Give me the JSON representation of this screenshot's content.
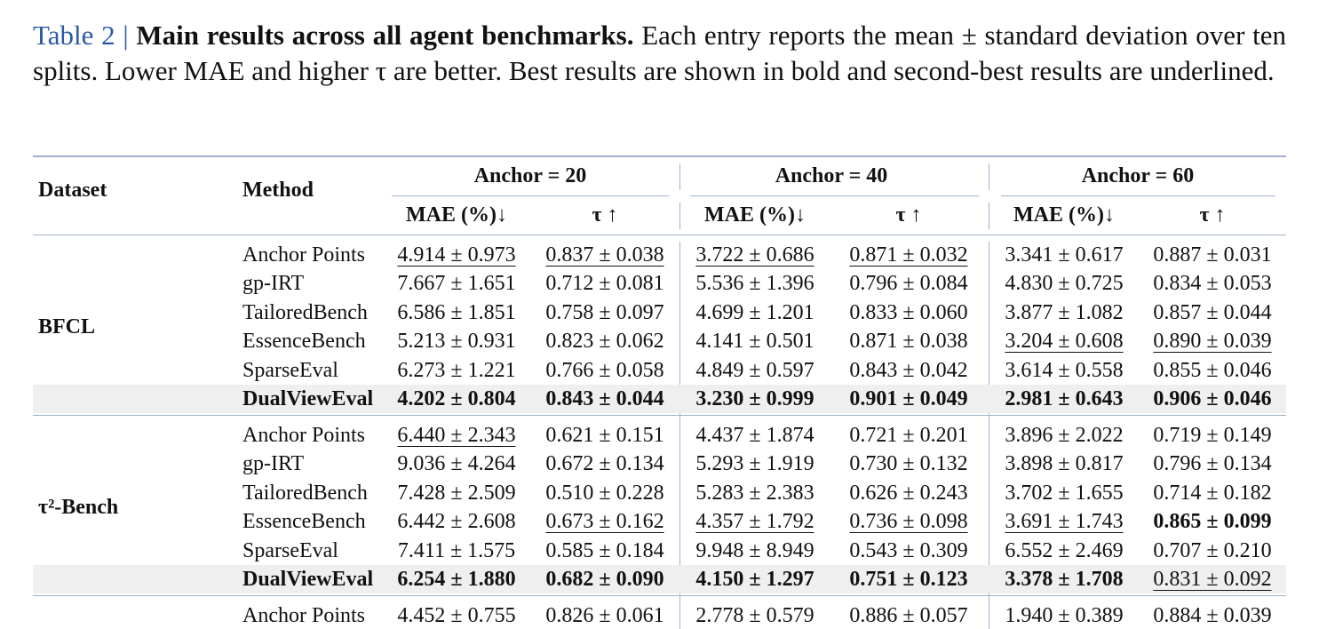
{
  "caption": {
    "label": "Table 2",
    "separator": "|",
    "title": "Main results across all agent benchmarks.",
    "text": "Each entry reports the mean ± standard deviation over ten splits. Lower MAE and higher τ are better. Best results are shown in bold and second-best results are underlined."
  },
  "table": {
    "header": {
      "dataset": "Dataset",
      "method": "Method",
      "groups": [
        "Anchor = 20",
        "Anchor = 40",
        "Anchor = 60"
      ],
      "metrics": [
        "MAE (%)↓",
        "τ ↑"
      ]
    },
    "groups": [
      {
        "dataset": "BFCL",
        "rows": [
          {
            "method": "Anchor Points",
            "values": [
              {
                "text": "4.914 ± 0.973",
                "style": "underline"
              },
              {
                "text": "0.837 ± 0.038",
                "style": "underline"
              },
              {
                "text": "3.722 ± 0.686",
                "style": "underline"
              },
              {
                "text": "0.871 ± 0.032",
                "style": "underline"
              },
              "3.341 ± 0.617",
              "0.887 ± 0.031"
            ]
          },
          {
            "method": "gp-IRT",
            "values": [
              "7.667 ± 1.651",
              "0.712 ± 0.081",
              "5.536 ± 1.396",
              "0.796 ± 0.084",
              "4.830 ± 0.725",
              "0.834 ± 0.053"
            ]
          },
          {
            "method": "TailoredBench",
            "values": [
              "6.586 ± 1.851",
              "0.758 ± 0.097",
              "4.699 ± 1.201",
              "0.833 ± 0.060",
              "3.877 ± 1.082",
              "0.857 ± 0.044"
            ]
          },
          {
            "method": "EssenceBench",
            "values": [
              "5.213 ± 0.931",
              "0.823 ± 0.062",
              "4.141 ± 0.501",
              "0.871 ± 0.038",
              {
                "text": "3.204 ± 0.608",
                "style": "underline"
              },
              {
                "text": "0.890 ± 0.039",
                "style": "underline"
              }
            ]
          },
          {
            "method": "SparseEval",
            "values": [
              "6.273 ± 1.221",
              "0.766 ± 0.058",
              "4.849 ± 0.597",
              "0.843 ± 0.042",
              "3.614 ± 0.558",
              "0.855 ± 0.046"
            ]
          },
          {
            "method": "DualViewEval",
            "highlight": true,
            "values": [
              {
                "text": "4.202 ± 0.804",
                "style": "bold"
              },
              {
                "text": "0.843 ± 0.044",
                "style": "bold"
              },
              {
                "text": "3.230 ± 0.999",
                "style": "bold"
              },
              {
                "text": "0.901 ± 0.049",
                "style": "bold"
              },
              {
                "text": "2.981 ± 0.643",
                "style": "bold"
              },
              {
                "text": "0.906 ± 0.046",
                "style": "bold"
              }
            ]
          }
        ]
      },
      {
        "dataset": "τ²-Bench",
        "rows": [
          {
            "method": "Anchor Points",
            "values": [
              {
                "text": "6.440 ± 2.343",
                "style": "underline"
              },
              "0.621 ± 0.151",
              "4.437 ± 1.874",
              "0.721 ± 0.201",
              "3.896 ± 2.022",
              "0.719 ± 0.149"
            ]
          },
          {
            "method": "gp-IRT",
            "values": [
              "9.036 ± 4.264",
              "0.672 ± 0.134",
              "5.293 ± 1.919",
              "0.730 ± 0.132",
              "3.898 ± 0.817",
              "0.796 ± 0.134"
            ]
          },
          {
            "method": "TailoredBench",
            "values": [
              "7.428 ± 2.509",
              "0.510 ± 0.228",
              "5.283 ± 2.383",
              "0.626 ± 0.243",
              "3.702 ± 1.655",
              "0.714 ± 0.182"
            ]
          },
          {
            "method": "EssenceBench",
            "values": [
              "6.442 ± 2.608",
              {
                "text": "0.673 ± 0.162",
                "style": "underline"
              },
              {
                "text": "4.357 ± 1.792",
                "style": "underline"
              },
              {
                "text": "0.736 ± 0.098",
                "style": "underline"
              },
              {
                "text": "3.691 ± 1.743",
                "style": "underline"
              },
              {
                "text": "0.865 ± 0.099",
                "style": "bold"
              }
            ]
          },
          {
            "method": "SparseEval",
            "values": [
              "7.411 ± 1.575",
              "0.585 ± 0.184",
              "9.948 ± 8.949",
              "0.543 ± 0.309",
              "6.552 ± 2.469",
              "0.707 ± 0.210"
            ]
          },
          {
            "method": "DualViewEval",
            "highlight": true,
            "values": [
              {
                "text": "6.254 ± 1.880",
                "style": "bold"
              },
              {
                "text": "0.682 ± 0.090",
                "style": "bold"
              },
              {
                "text": "4.150 ± 1.297",
                "style": "bold"
              },
              {
                "text": "0.751 ± 0.123",
                "style": "bold"
              },
              {
                "text": "3.378 ± 1.708",
                "style": "bold"
              },
              {
                "text": "0.831 ± 0.092",
                "style": "underline"
              }
            ]
          }
        ]
      },
      {
        "rows": [
          {
            "method": "Anchor Points",
            "values": [
              "4.452 ± 0.755",
              "0.826 ± 0.061",
              "2.778 ± 0.579",
              "0.886 ± 0.057",
              "1.940 ± 0.389",
              "0.884 ± 0.039"
            ]
          }
        ]
      }
    ]
  }
}
